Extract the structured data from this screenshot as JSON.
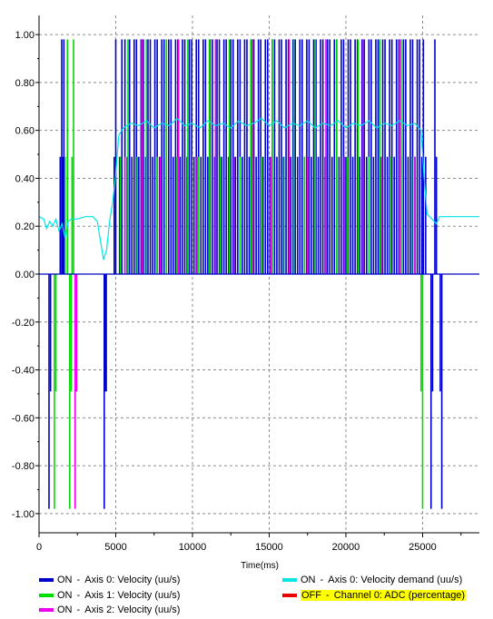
{
  "chart_data": {
    "type": "line",
    "title": "",
    "xlabel": "Time(ms)",
    "ylabel": "",
    "xlim": [
      0,
      28700
    ],
    "ylim": [
      -1.08,
      1.08
    ],
    "x_ticks": [
      0,
      5000,
      10000,
      15000,
      20000,
      25000
    ],
    "y_ticks": [
      1.0,
      0.8,
      0.6,
      0.4,
      0.2,
      0.0,
      -0.2,
      -0.4,
      -0.6,
      -0.8,
      -1.0
    ],
    "x_tick_labels": [
      "0",
      "5000",
      "10000",
      "15000",
      "20000",
      "25000"
    ],
    "y_tick_labels": [
      "1.00",
      "0.80",
      "0.60",
      "0.40",
      "0.20",
      "0.00",
      "-0.20",
      "-0.40",
      "-0.60",
      "-0.80",
      "-1.00"
    ],
    "grid": true,
    "legend_position": "bottom",
    "series": [
      {
        "name": "Axis 0: Velocity (uu/s)",
        "state": "ON",
        "color": "#0000cc",
        "style": "spikes",
        "spikes": [
          [
            650,
            -0.98
          ],
          [
            750,
            -0.49
          ],
          [
            1380,
            0.49
          ],
          [
            1480,
            0.98
          ],
          [
            1550,
            0.49
          ],
          [
            1620,
            0.98
          ],
          [
            4250,
            -0.98
          ],
          [
            4320,
            -0.49
          ],
          [
            4380,
            -0.49
          ],
          [
            4900,
            0.49
          ],
          [
            5000,
            0.98
          ],
          [
            5250,
            0.49
          ],
          [
            5400,
            0.98
          ],
          [
            5600,
            0.98
          ],
          [
            5750,
            0.49
          ],
          [
            5900,
            0.98
          ],
          [
            6050,
            0.49
          ],
          [
            6200,
            0.98
          ],
          [
            6350,
            0.98
          ],
          [
            6500,
            0.49
          ],
          [
            6650,
            0.98
          ],
          [
            6800,
            0.98
          ],
          [
            6950,
            0.49
          ],
          [
            7100,
            0.98
          ],
          [
            7250,
            0.98
          ],
          [
            7400,
            0.49
          ],
          [
            7550,
            0.98
          ],
          [
            7700,
            0.98
          ],
          [
            7850,
            0.49
          ],
          [
            8000,
            0.98
          ],
          [
            8150,
            0.98
          ],
          [
            8300,
            0.49
          ],
          [
            8450,
            0.98
          ],
          [
            8600,
            0.98
          ],
          [
            8750,
            0.49
          ],
          [
            8900,
            0.98
          ],
          [
            9050,
            0.98
          ],
          [
            9200,
            0.49
          ],
          [
            9350,
            0.98
          ],
          [
            9500,
            0.98
          ],
          [
            9650,
            0.49
          ],
          [
            9800,
            0.98
          ],
          [
            9950,
            0.98
          ],
          [
            10100,
            0.49
          ],
          [
            10250,
            0.98
          ],
          [
            10400,
            0.98
          ],
          [
            10550,
            0.49
          ],
          [
            10700,
            0.98
          ],
          [
            10850,
            0.98
          ],
          [
            11000,
            0.49
          ],
          [
            11150,
            0.98
          ],
          [
            11300,
            0.98
          ],
          [
            11450,
            0.49
          ],
          [
            11600,
            0.98
          ],
          [
            11750,
            0.98
          ],
          [
            11900,
            0.49
          ],
          [
            12050,
            0.98
          ],
          [
            12200,
            0.98
          ],
          [
            12350,
            0.49
          ],
          [
            12500,
            0.98
          ],
          [
            12650,
            0.98
          ],
          [
            12800,
            0.49
          ],
          [
            12950,
            0.98
          ],
          [
            13100,
            0.98
          ],
          [
            13250,
            0.49
          ],
          [
            13400,
            0.98
          ],
          [
            13550,
            0.98
          ],
          [
            13700,
            0.49
          ],
          [
            13850,
            0.98
          ],
          [
            14000,
            0.98
          ],
          [
            14150,
            0.49
          ],
          [
            14300,
            0.98
          ],
          [
            14450,
            0.98
          ],
          [
            14600,
            0.49
          ],
          [
            14750,
            0.98
          ],
          [
            14900,
            0.98
          ],
          [
            15050,
            0.49
          ],
          [
            15200,
            0.98
          ],
          [
            15350,
            0.98
          ],
          [
            15500,
            0.49
          ],
          [
            15650,
            0.98
          ],
          [
            15800,
            0.98
          ],
          [
            15950,
            0.49
          ],
          [
            16100,
            0.98
          ],
          [
            16250,
            0.98
          ],
          [
            16400,
            0.49
          ],
          [
            16550,
            0.98
          ],
          [
            16700,
            0.98
          ],
          [
            16850,
            0.49
          ],
          [
            17000,
            0.98
          ],
          [
            17150,
            0.98
          ],
          [
            17300,
            0.49
          ],
          [
            17450,
            0.98
          ],
          [
            17600,
            0.98
          ],
          [
            17750,
            0.49
          ],
          [
            17900,
            0.98
          ],
          [
            18050,
            0.98
          ],
          [
            18200,
            0.49
          ],
          [
            18350,
            0.98
          ],
          [
            18500,
            0.98
          ],
          [
            18650,
            0.49
          ],
          [
            18800,
            0.98
          ],
          [
            18950,
            0.98
          ],
          [
            19100,
            0.49
          ],
          [
            19250,
            0.98
          ],
          [
            19400,
            0.98
          ],
          [
            19550,
            0.49
          ],
          [
            19700,
            0.98
          ],
          [
            19850,
            0.98
          ],
          [
            20000,
            0.49
          ],
          [
            20150,
            0.98
          ],
          [
            20300,
            0.98
          ],
          [
            20450,
            0.49
          ],
          [
            20600,
            0.98
          ],
          [
            20750,
            0.98
          ],
          [
            20900,
            0.49
          ],
          [
            21050,
            0.98
          ],
          [
            21200,
            0.98
          ],
          [
            21350,
            0.49
          ],
          [
            21500,
            0.98
          ],
          [
            21650,
            0.98
          ],
          [
            21800,
            0.49
          ],
          [
            21950,
            0.98
          ],
          [
            22100,
            0.98
          ],
          [
            22250,
            0.49
          ],
          [
            22400,
            0.98
          ],
          [
            22550,
            0.98
          ],
          [
            22700,
            0.49
          ],
          [
            22850,
            0.98
          ],
          [
            23000,
            0.98
          ],
          [
            23150,
            0.49
          ],
          [
            23300,
            0.98
          ],
          [
            23450,
            0.98
          ],
          [
            23600,
            0.49
          ],
          [
            23750,
            0.98
          ],
          [
            23900,
            0.98
          ],
          [
            24050,
            0.49
          ],
          [
            24200,
            0.98
          ],
          [
            24350,
            0.98
          ],
          [
            24500,
            0.49
          ],
          [
            24650,
            0.98
          ],
          [
            24800,
            0.98
          ],
          [
            24950,
            0.49
          ],
          [
            25050,
            0.98
          ],
          [
            25200,
            0.49
          ],
          [
            25550,
            -0.98
          ],
          [
            25650,
            -0.49
          ],
          [
            25800,
            0.98
          ],
          [
            25900,
            0.49
          ],
          [
            26150,
            -0.49
          ],
          [
            26250,
            -0.98
          ]
        ]
      },
      {
        "name": "Axis 1: Velocity (uu/s)",
        "state": "ON",
        "color": "#00dd00",
        "style": "spikes",
        "spikes": [
          [
            1000,
            -0.98
          ],
          [
            1100,
            -0.49
          ],
          [
            1700,
            0.49
          ],
          [
            1850,
            0.98
          ],
          [
            2000,
            -0.98
          ],
          [
            2100,
            -0.49
          ],
          [
            2150,
            0.49
          ],
          [
            2250,
            0.98
          ],
          [
            5300,
            0.49
          ],
          [
            5800,
            0.98
          ],
          [
            6400,
            0.49
          ],
          [
            7000,
            0.98
          ],
          [
            7700,
            0.49
          ],
          [
            8300,
            0.98
          ],
          [
            9000,
            0.49
          ],
          [
            9700,
            0.98
          ],
          [
            10400,
            0.49
          ],
          [
            11100,
            0.98
          ],
          [
            11800,
            0.49
          ],
          [
            12400,
            0.98
          ],
          [
            13100,
            0.49
          ],
          [
            13800,
            0.98
          ],
          [
            14500,
            0.49
          ],
          [
            15200,
            0.98
          ],
          [
            15900,
            0.49
          ],
          [
            16600,
            0.98
          ],
          [
            17300,
            0.49
          ],
          [
            18000,
            0.98
          ],
          [
            18700,
            0.49
          ],
          [
            19400,
            0.98
          ],
          [
            20100,
            0.49
          ],
          [
            20800,
            0.98
          ],
          [
            21500,
            0.49
          ],
          [
            22200,
            0.98
          ],
          [
            22900,
            0.49
          ],
          [
            23600,
            0.98
          ],
          [
            24300,
            0.49
          ],
          [
            24900,
            -0.49
          ],
          [
            25000,
            -0.98
          ]
        ]
      },
      {
        "name": "Axis 2: Velocity (uu/s)",
        "state": "ON",
        "color": "#ee00ee",
        "style": "spikes",
        "spikes": [
          [
            2350,
            -0.98
          ],
          [
            2450,
            -0.49
          ],
          [
            5600,
            0.49
          ],
          [
            6700,
            0.98
          ],
          [
            7900,
            0.49
          ],
          [
            9100,
            0.98
          ],
          [
            10300,
            0.49
          ],
          [
            11500,
            0.98
          ],
          [
            12700,
            0.49
          ],
          [
            13900,
            0.98
          ],
          [
            15100,
            0.49
          ],
          [
            16300,
            0.98
          ],
          [
            17500,
            0.49
          ],
          [
            18700,
            0.98
          ],
          [
            19900,
            0.49
          ],
          [
            21100,
            0.98
          ],
          [
            22300,
            0.49
          ],
          [
            23500,
            0.98
          ],
          [
            24500,
            0.49
          ]
        ]
      },
      {
        "name": "Axis 0: Velocity demand (uu/s)",
        "state": "ON",
        "color": "#00e5e5",
        "style": "line",
        "points": [
          [
            0,
            0.24
          ],
          [
            300,
            0.23
          ],
          [
            500,
            0.19
          ],
          [
            700,
            0.22
          ],
          [
            900,
            0.2
          ],
          [
            1100,
            0.23
          ],
          [
            1300,
            0.18
          ],
          [
            1500,
            0.21
          ],
          [
            1700,
            0.15
          ],
          [
            1900,
            0.22
          ],
          [
            2100,
            0.23
          ],
          [
            2500,
            0.23
          ],
          [
            3000,
            0.24
          ],
          [
            3500,
            0.24
          ],
          [
            3800,
            0.22
          ],
          [
            4000,
            0.14
          ],
          [
            4200,
            0.06
          ],
          [
            4400,
            0.1
          ],
          [
            4600,
            0.22
          ],
          [
            4800,
            0.3
          ],
          [
            5000,
            0.42
          ],
          [
            5200,
            0.58
          ],
          [
            5500,
            0.61
          ],
          [
            6000,
            0.63
          ],
          [
            6500,
            0.62
          ],
          [
            7000,
            0.64
          ],
          [
            7500,
            0.61
          ],
          [
            8000,
            0.63
          ],
          [
            8500,
            0.62
          ],
          [
            9000,
            0.65
          ],
          [
            9500,
            0.62
          ],
          [
            10000,
            0.63
          ],
          [
            10500,
            0.61
          ],
          [
            11000,
            0.64
          ],
          [
            11500,
            0.62
          ],
          [
            12000,
            0.63
          ],
          [
            12500,
            0.61
          ],
          [
            13000,
            0.64
          ],
          [
            13500,
            0.62
          ],
          [
            14000,
            0.63
          ],
          [
            14500,
            0.65
          ],
          [
            15000,
            0.62
          ],
          [
            15500,
            0.64
          ],
          [
            16000,
            0.61
          ],
          [
            16500,
            0.63
          ],
          [
            17000,
            0.62
          ],
          [
            17500,
            0.64
          ],
          [
            18000,
            0.61
          ],
          [
            18500,
            0.63
          ],
          [
            19000,
            0.62
          ],
          [
            19500,
            0.64
          ],
          [
            20000,
            0.61
          ],
          [
            20500,
            0.63
          ],
          [
            21000,
            0.62
          ],
          [
            21500,
            0.64
          ],
          [
            22000,
            0.61
          ],
          [
            22500,
            0.63
          ],
          [
            23000,
            0.62
          ],
          [
            23500,
            0.64
          ],
          [
            24000,
            0.62
          ],
          [
            24500,
            0.63
          ],
          [
            24900,
            0.6
          ],
          [
            25100,
            0.4
          ],
          [
            25300,
            0.25
          ],
          [
            25600,
            0.23
          ],
          [
            25900,
            0.21
          ],
          [
            26100,
            0.24
          ],
          [
            26500,
            0.24
          ],
          [
            27000,
            0.24
          ],
          [
            28700,
            0.24
          ]
        ]
      },
      {
        "name": "Channel 0: ADC (percentage)",
        "state": "OFF",
        "color": "#ee0000",
        "style": "hidden"
      }
    ]
  }
}
